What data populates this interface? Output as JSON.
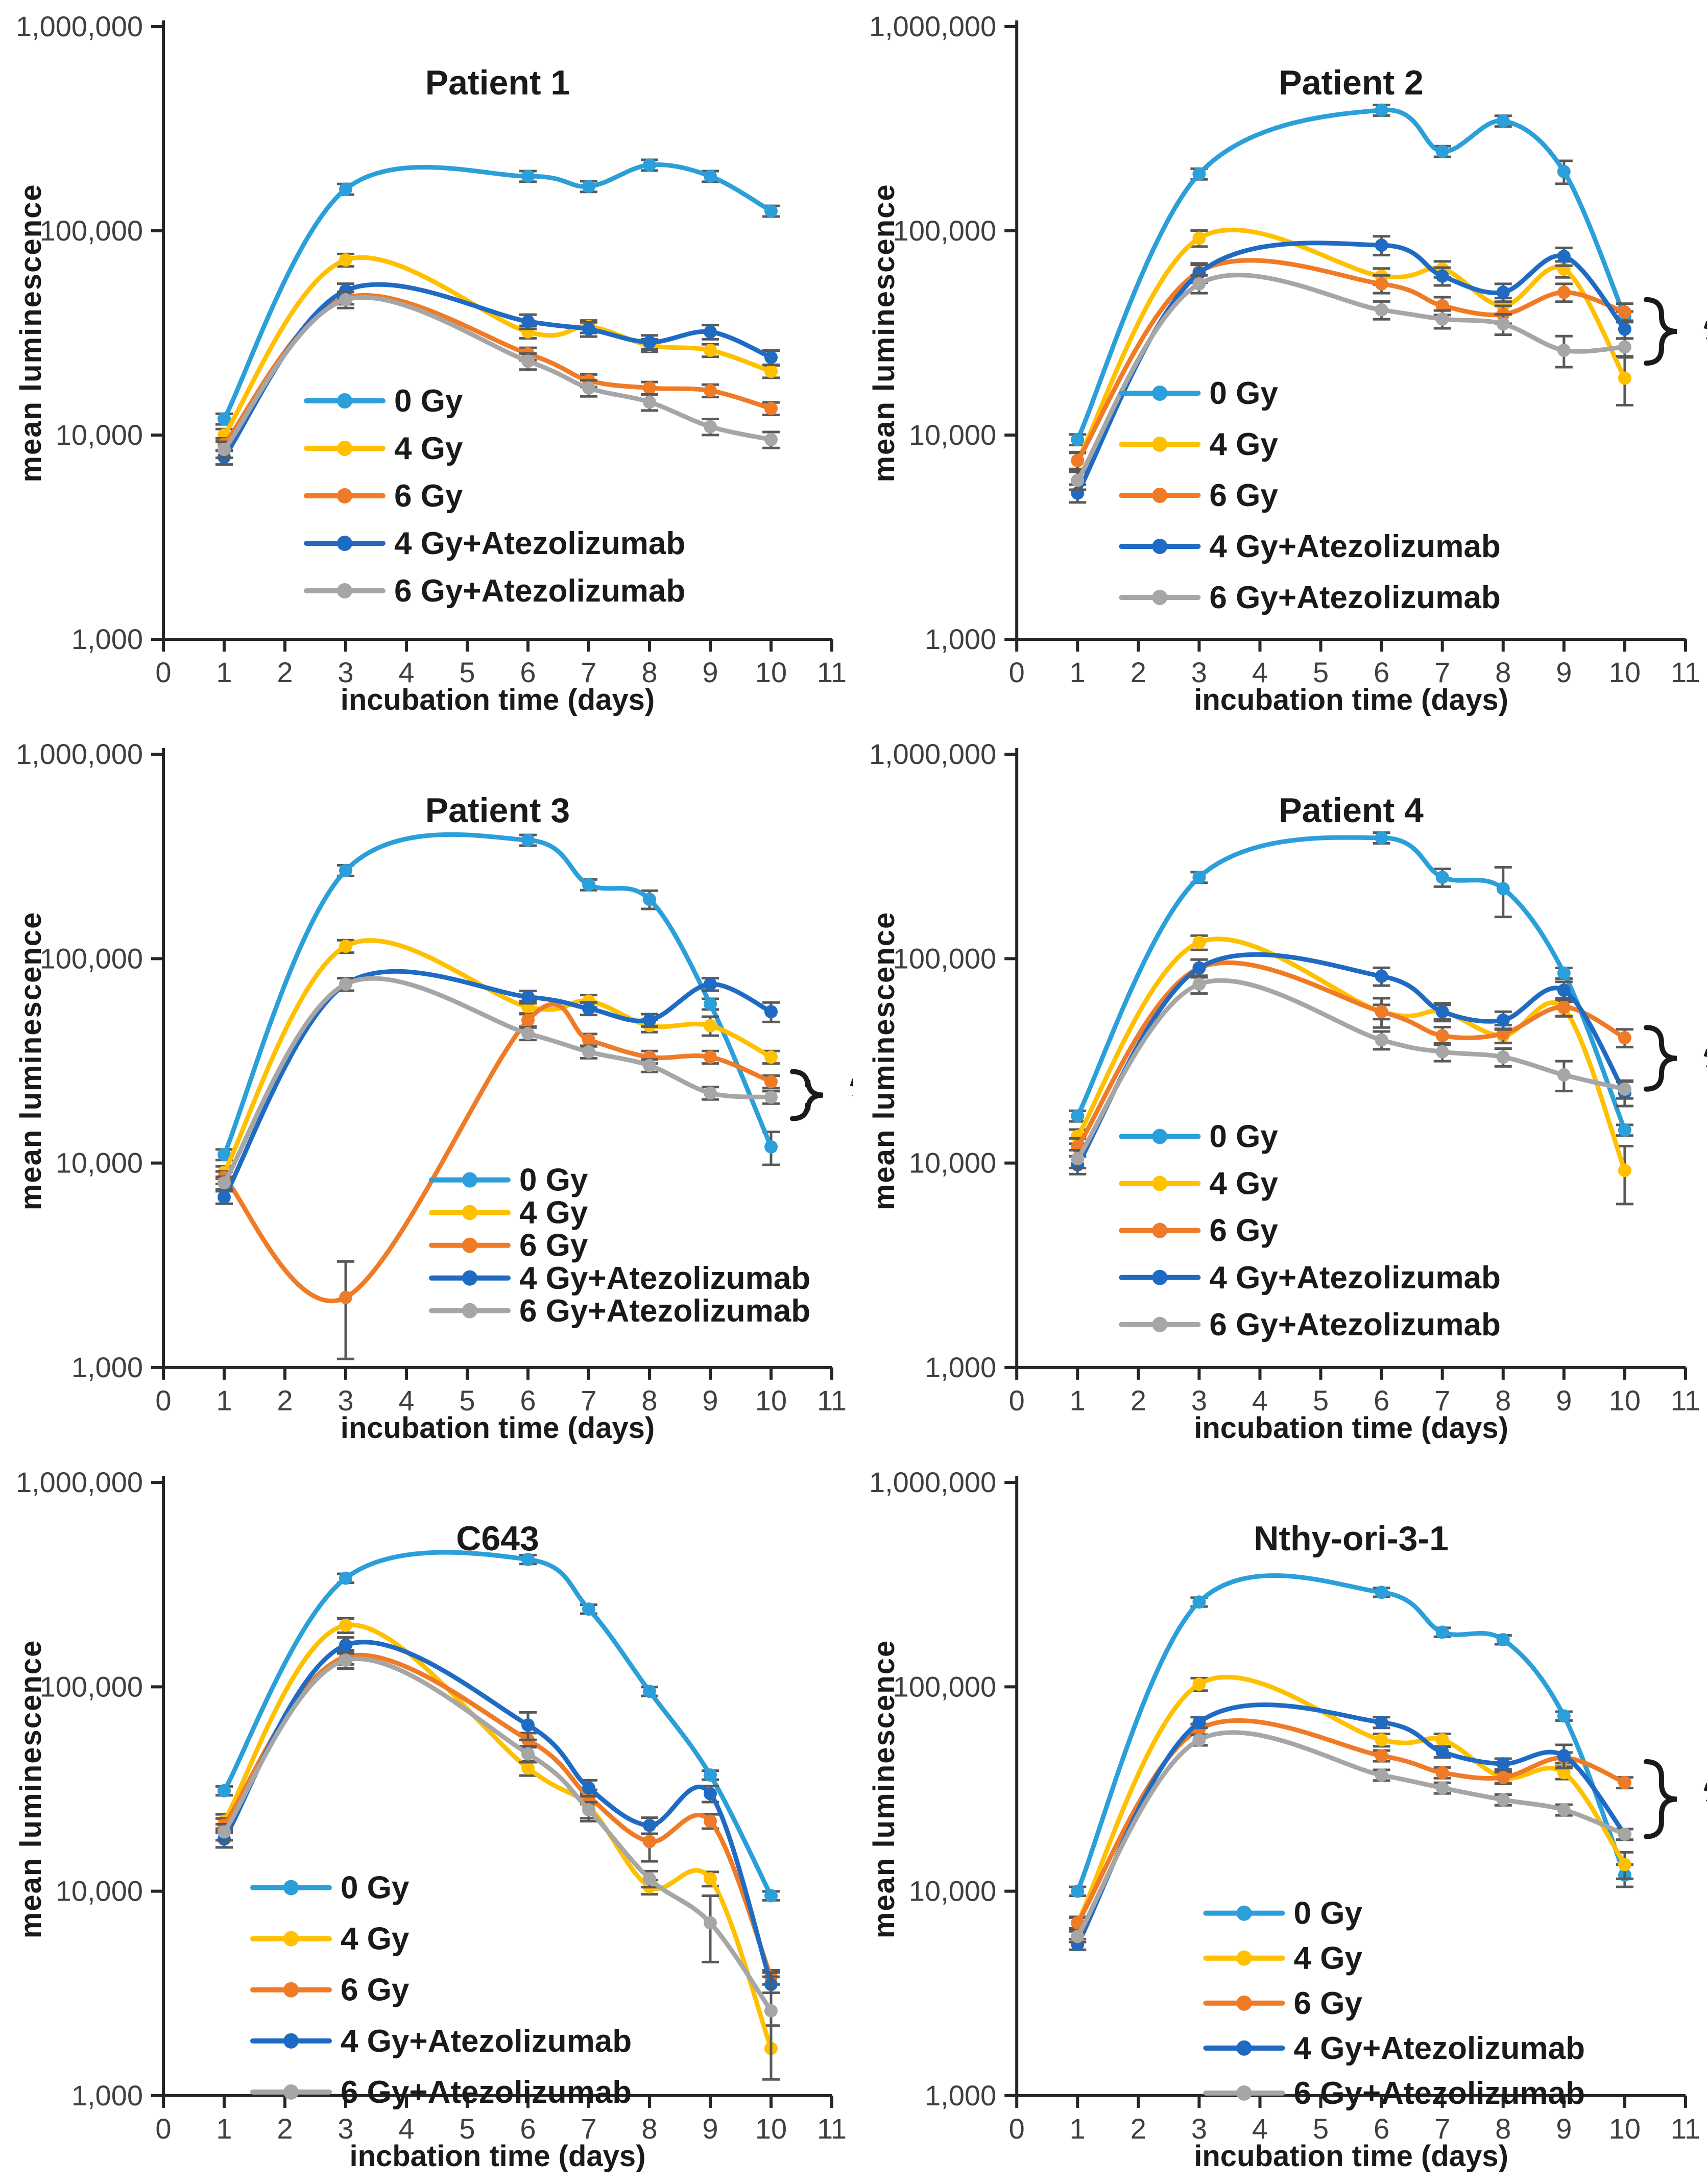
{
  "page": {
    "background": "#FFFFFF"
  },
  "palette": {
    "axis": "#262626",
    "tick_text": "#3F3F3F",
    "error_bar": "#595959",
    "text": "#1A1A1A"
  },
  "axes_text": {
    "x_ticks": [
      "0",
      "1",
      "2",
      "3",
      "4",
      "5",
      "6",
      "7",
      "8",
      "9",
      "10",
      "11"
    ],
    "y_ticks": [
      "1,000",
      "10,000",
      "100,000",
      "1,000,000"
    ]
  },
  "sig": {
    "star": "*"
  },
  "chart_data": [
    {
      "type": "line",
      "title": "Patient 1",
      "xlabel": "incubation time (days)",
      "ylabel": "mean luminescence",
      "x": [
        1,
        3,
        6,
        7,
        8,
        9,
        10
      ],
      "xlim": [
        0,
        11
      ],
      "ylim": [
        1000,
        1000000
      ],
      "yscale": "log",
      "grid": false,
      "legend_pos": {
        "x": 600,
        "y": 785,
        "dy": 93
      },
      "annotation": null,
      "series": [
        {
          "name": "0 Gy",
          "color": "#2B9FD9",
          "err_frac": 0.06,
          "values": [
            12000,
            160000,
            185000,
            165000,
            210000,
            185000,
            125000
          ]
        },
        {
          "name": "4 Gy",
          "color": "#FFC000",
          "err_frac": 0.07,
          "values": [
            10000,
            72000,
            32000,
            34000,
            27500,
            26000,
            20500
          ]
        },
        {
          "name": "6 Gy",
          "color": "#F07B27",
          "err_frac": 0.07,
          "values": [
            9000,
            47000,
            25000,
            18500,
            17000,
            16500,
            13500
          ]
        },
        {
          "name": "4 Gy+Atezolizumab",
          "color": "#1F6BC4",
          "err_frac": 0.08,
          "values": [
            7800,
            51000,
            36000,
            33000,
            28500,
            32000,
            24000
          ]
        },
        {
          "name": "6 Gy+Atezolizumab",
          "color": "#A6A6A6",
          "err_frac": 0.09,
          "values": [
            8500,
            46000,
            23000,
            17000,
            14500,
            11000,
            9500
          ]
        }
      ],
      "err_overrides": []
    },
    {
      "type": "line",
      "title": "Patient 2",
      "xlabel": "incubation time (days)",
      "ylabel": "mean luminescence",
      "x": [
        1,
        3,
        6,
        7,
        8,
        9,
        10
      ],
      "xlim": [
        0,
        11
      ],
      "ylim": [
        1000,
        1000000
      ],
      "yscale": "log",
      "grid": false,
      "legend_pos": {
        "x": 525,
        "y": 770,
        "dy": 100
      },
      "annotation": {
        "bracket_top": 46000,
        "bracket_bottom": 22500,
        "star_value": 30000
      },
      "series": [
        {
          "name": "0 Gy",
          "color": "#2B9FD9",
          "err_frac": 0.06,
          "values": [
            9500,
            190000,
            390000,
            245000,
            345000,
            195000,
            38000
          ]
        },
        {
          "name": "4 Gy",
          "color": "#FFC000",
          "err_frac": 0.09,
          "values": [
            7500,
            92000,
            60000,
            65000,
            43000,
            65000,
            19000
          ]
        },
        {
          "name": "6 Gy",
          "color": "#F07B27",
          "err_frac": 0.1,
          "values": [
            7500,
            63000,
            55000,
            43000,
            39000,
            50000,
            40000
          ]
        },
        {
          "name": "4 Gy+Atezolizumab",
          "color": "#1F6BC4",
          "err_frac": 0.1,
          "values": [
            5200,
            62000,
            85000,
            60000,
            50000,
            75000,
            33000
          ]
        },
        {
          "name": "6 Gy+Atezolizumab",
          "color": "#A6A6A6",
          "err_frac": 0.1,
          "values": [
            6000,
            55000,
            41000,
            37000,
            35000,
            26000,
            27000
          ]
        }
      ],
      "err_overrides": [
        [
          0,
          5,
          25000
        ],
        [
          1,
          6,
          5000
        ],
        [
          4,
          4,
          4000
        ],
        [
          4,
          5,
          4500
        ],
        [
          3,
          2,
          9000
        ]
      ]
    },
    {
      "type": "line",
      "title": "Patient 3",
      "xlabel": "incubation time (days)",
      "ylabel": "mean luminescence",
      "x": [
        1,
        3,
        6,
        7,
        8,
        9,
        10
      ],
      "xlim": [
        0,
        11
      ],
      "ylim": [
        1000,
        1000000
      ],
      "yscale": "log",
      "grid": false,
      "legend_pos": {
        "x": 845,
        "y": 885,
        "dy": 64
      },
      "annotation": {
        "bracket_top": 28000,
        "bracket_bottom": 16500,
        "star_value": 21500
      },
      "series": [
        {
          "name": "0 Gy",
          "color": "#2B9FD9",
          "err_frac": 0.06,
          "values": [
            11000,
            270000,
            380000,
            230000,
            195000,
            60000,
            12000
          ]
        },
        {
          "name": "4 Gy",
          "color": "#FFC000",
          "err_frac": 0.07,
          "values": [
            9000,
            115000,
            58000,
            62000,
            47000,
            47000,
            33000
          ]
        },
        {
          "name": "6 Gy",
          "color": "#F07B27",
          "err_frac": 0.07,
          "values": [
            8500,
            2200,
            50000,
            40000,
            33000,
            33000,
            25000
          ]
        },
        {
          "name": "4 Gy+Atezolizumab",
          "color": "#1F6BC4",
          "err_frac": 0.07,
          "values": [
            6800,
            75000,
            65000,
            57000,
            50000,
            75000,
            55000
          ]
        },
        {
          "name": "6 Gy+Atezolizumab",
          "color": "#A6A6A6",
          "err_frac": 0.07,
          "values": [
            8000,
            75000,
            43000,
            35000,
            30000,
            22000,
            21000
          ]
        }
      ],
      "err_overrides": [
        [
          2,
          1,
          1100
        ],
        [
          0,
          4,
          20000
        ],
        [
          0,
          6,
          2200
        ],
        [
          3,
          6,
          6000
        ],
        [
          1,
          5,
          5000
        ]
      ]
    },
    {
      "type": "line",
      "title": "Patient 4",
      "xlabel": "incubation time (days)",
      "ylabel": "mean luminescence",
      "x": [
        1,
        3,
        6,
        7,
        8,
        9,
        10
      ],
      "xlim": [
        0,
        11
      ],
      "ylim": [
        1000,
        1000000
      ],
      "yscale": "log",
      "grid": false,
      "legend_pos": {
        "x": 525,
        "y": 800,
        "dy": 92
      },
      "annotation": {
        "bracket_top": 46000,
        "bracket_bottom": 23000,
        "star_value": 30000
      },
      "series": [
        {
          "name": "0 Gy",
          "color": "#2B9FD9",
          "err_frac": 0.06,
          "values": [
            17000,
            250000,
            390000,
            250000,
            220000,
            85000,
            14500
          ]
        },
        {
          "name": "4 Gy",
          "color": "#FFC000",
          "err_frac": 0.08,
          "values": [
            13500,
            120000,
            55000,
            55000,
            42000,
            57000,
            9200
          ]
        },
        {
          "name": "6 Gy",
          "color": "#F07B27",
          "err_frac": 0.1,
          "values": [
            12000,
            90000,
            55000,
            42000,
            43000,
            58000,
            41000
          ]
        },
        {
          "name": "4 Gy+Atezolizumab",
          "color": "#1F6BC4",
          "err_frac": 0.1,
          "values": [
            9800,
            90000,
            82000,
            55000,
            50000,
            70000,
            22000
          ]
        },
        {
          "name": "6 Gy+Atezolizumab",
          "color": "#A6A6A6",
          "err_frac": 0.1,
          "values": [
            10500,
            75000,
            40000,
            35000,
            33000,
            27000,
            23000
          ]
        }
      ],
      "err_overrides": [
        [
          0,
          4,
          60000
        ],
        [
          0,
          3,
          25000
        ],
        [
          1,
          6,
          2900
        ],
        [
          4,
          5,
          4500
        ],
        [
          3,
          6,
          3000
        ],
        [
          2,
          2,
          9000
        ]
      ]
    },
    {
      "type": "line",
      "title": "C643",
      "xlabel": "incbation time (days)",
      "ylabel": "mean luminescence",
      "x": [
        1,
        3,
        6,
        7,
        8,
        9,
        10
      ],
      "xlim": [
        0,
        11
      ],
      "ylim": [
        1000,
        1000000
      ],
      "yscale": "log",
      "grid": false,
      "legend_pos": {
        "x": 495,
        "y": 845,
        "dy": 100
      },
      "annotation": null,
      "series": [
        {
          "name": "0 Gy",
          "color": "#2B9FD9",
          "err_frac": 0.05,
          "values": [
            31000,
            340000,
            420000,
            240000,
            95000,
            37000,
            9500
          ]
        },
        {
          "name": "4 Gy",
          "color": "#FFC000",
          "err_frac": 0.08,
          "values": [
            22000,
            200000,
            40000,
            26000,
            10500,
            11500,
            1700
          ]
        },
        {
          "name": "6 Gy",
          "color": "#F07B27",
          "err_frac": 0.08,
          "values": [
            21000,
            140000,
            55000,
            29000,
            17500,
            22000,
            3800
          ]
        },
        {
          "name": "4 Gy+Atezolizumab",
          "color": "#1F6BC4",
          "err_frac": 0.09,
          "values": [
            18000,
            160000,
            65000,
            32000,
            21000,
            30000,
            3500
          ]
        },
        {
          "name": "6 Gy+Atezolizumab",
          "color": "#A6A6A6",
          "err_frac": 0.09,
          "values": [
            19500,
            135000,
            47000,
            25000,
            11500,
            7000,
            2600
          ]
        }
      ],
      "err_overrides": [
        [
          1,
          6,
          500
        ],
        [
          4,
          5,
          2500
        ],
        [
          4,
          6,
          1400
        ],
        [
          3,
          2,
          10000
        ],
        [
          2,
          4,
          3500
        ],
        [
          1,
          3,
          4000
        ]
      ]
    },
    {
      "type": "line",
      "title": "Nthy-ori-3-1",
      "xlabel": "incubation time (days)",
      "ylabel": "mean luminescence",
      "x": [
        1,
        3,
        6,
        7,
        8,
        9,
        10
      ],
      "xlim": [
        0,
        11
      ],
      "ylim": [
        1000,
        1000000
      ],
      "yscale": "log",
      "grid": false,
      "legend_pos": {
        "x": 690,
        "y": 895,
        "dy": 88
      },
      "annotation": {
        "bracket_top": 43000,
        "bracket_bottom": 18500,
        "star_value": 28000
      },
      "series": [
        {
          "name": "0 Gy",
          "color": "#2B9FD9",
          "err_frac": 0.05,
          "values": [
            10000,
            260000,
            290000,
            185000,
            170000,
            72000,
            12000
          ]
        },
        {
          "name": "4 Gy",
          "color": "#FFC000",
          "err_frac": 0.07,
          "values": [
            7000,
            103000,
            55000,
            55000,
            36000,
            38000,
            13500
          ]
        },
        {
          "name": "6 Gy",
          "color": "#F07B27",
          "err_frac": 0.06,
          "values": [
            7000,
            62000,
            46000,
            38000,
            36000,
            45000,
            34000
          ]
        },
        {
          "name": "4 Gy+Atezolizumab",
          "color": "#1F6BC4",
          "err_frac": 0.06,
          "values": [
            5500,
            67000,
            67000,
            48000,
            42000,
            46000,
            19000
          ]
        },
        {
          "name": "6 Gy+Atezolizumab",
          "color": "#A6A6A6",
          "err_frac": 0.06,
          "values": [
            6000,
            55000,
            37000,
            32000,
            28000,
            25000,
            19000
          ]
        }
      ],
      "err_overrides": [
        [
          1,
          6,
          2000
        ],
        [
          0,
          6,
          1500
        ],
        [
          3,
          5,
          6000
        ]
      ]
    }
  ]
}
